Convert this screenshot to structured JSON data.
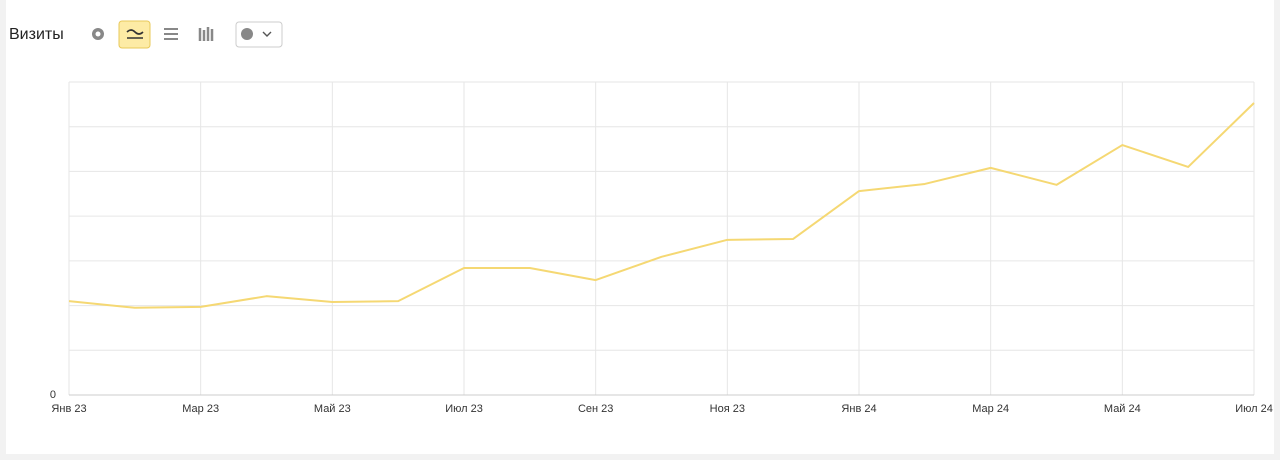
{
  "chart_data": {
    "type": "line",
    "title": "Визиты",
    "categories": [
      "Янв 23",
      null,
      "Мар 23",
      null,
      "Май 23",
      null,
      "Июл 23",
      null,
      "Сен 23",
      null,
      "Ноя 23",
      null,
      "Янв 24",
      null,
      "Мар 24",
      null,
      "Май 24",
      null,
      "Июл 24"
    ],
    "values": [
      2.1,
      1.95,
      1.97,
      2.21,
      2.08,
      2.1,
      2.84,
      2.84,
      2.57,
      3.09,
      3.47,
      3.49,
      4.56,
      4.72,
      5.08,
      4.7,
      5.59,
      5.1,
      6.53
    ],
    "color": "#f5d873",
    "ylim": [
      0,
      7
    ],
    "yticks": [
      0
    ],
    "grid_lines": [
      1,
      2,
      3,
      4,
      5,
      6,
      7
    ],
    "grid": true
  }
}
